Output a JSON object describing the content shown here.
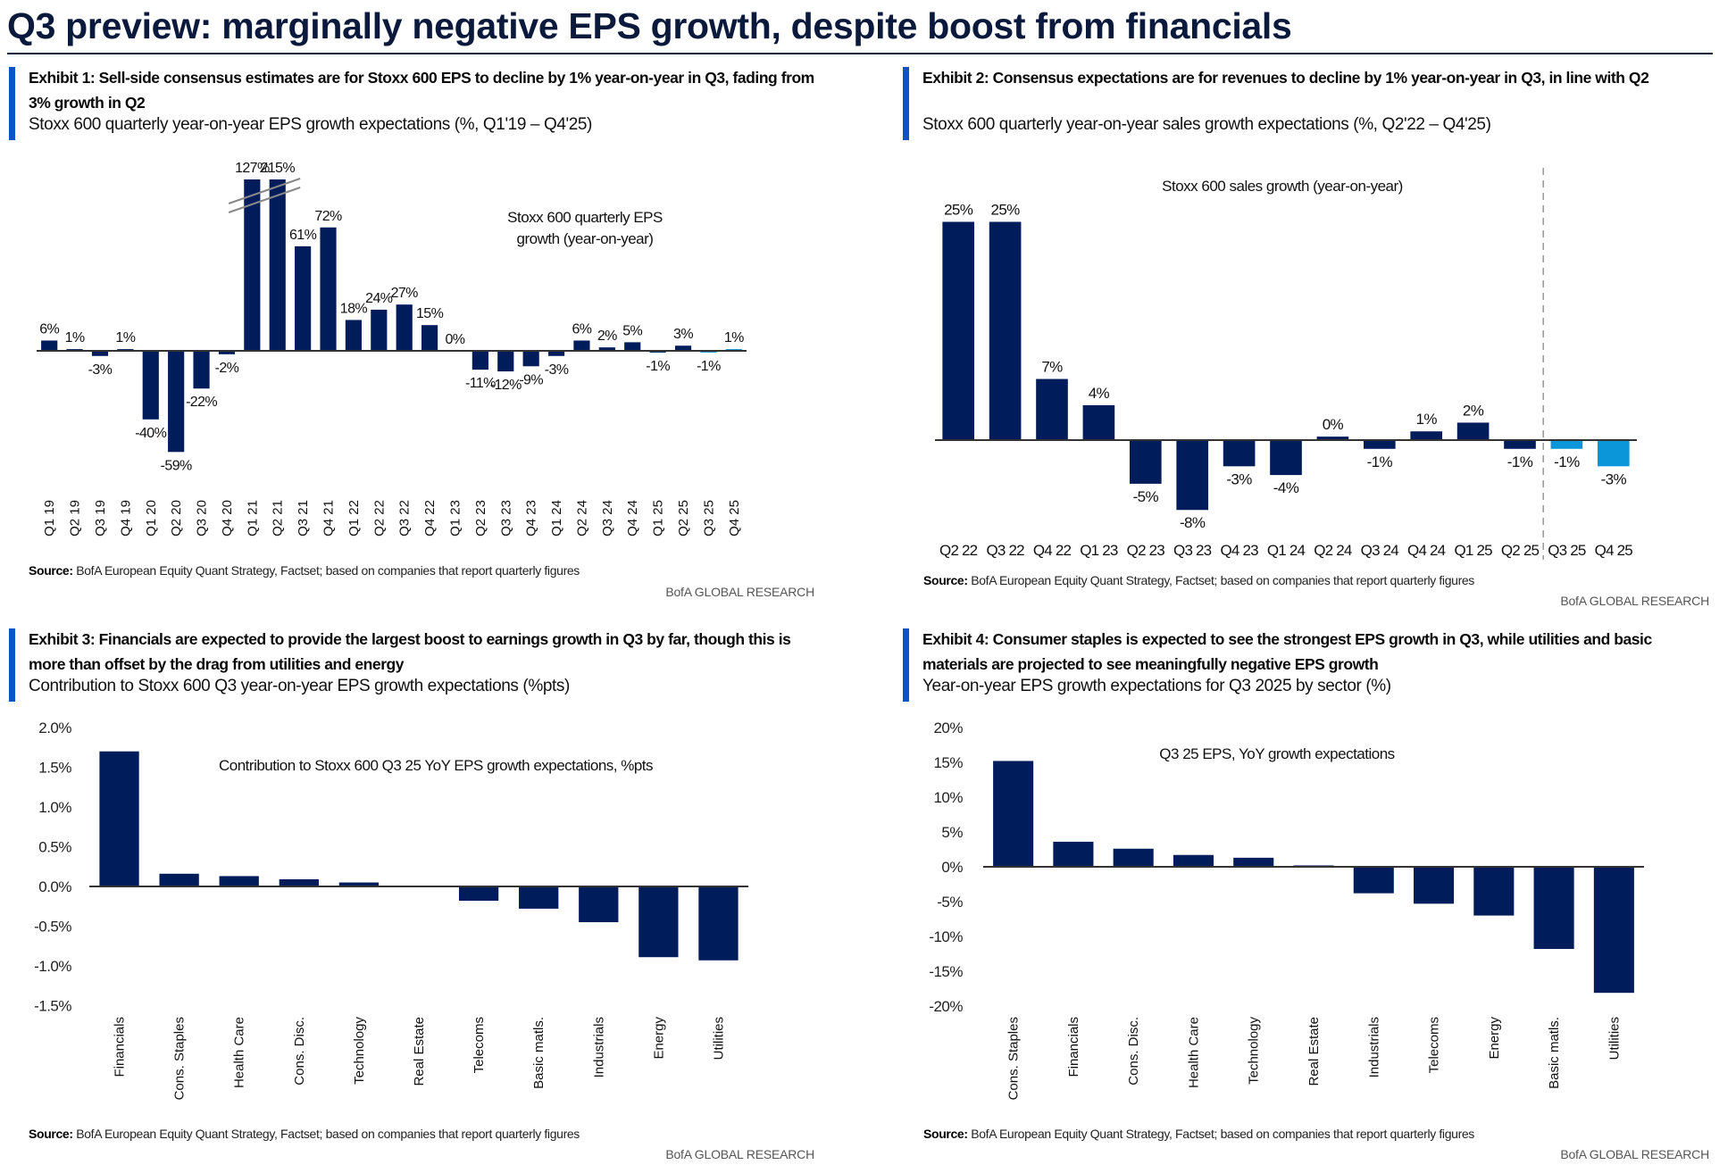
{
  "page_title": "Q3 preview: marginally negative EPS growth, despite boost from financials",
  "colors": {
    "bar": "#001c5a",
    "estimate_bar": "#0a96d8",
    "accent": "#0a54c6",
    "title": "#0b1a3c"
  },
  "exhibits": [
    {
      "heading": "Exhibit 1: Sell-side consensus estimates are for Stoxx 600 EPS to decline by 1% year-on-year in Q3, fading from 3% growth in Q2",
      "subtitle": "Stoxx 600 quarterly year-on-year EPS growth expectations (%, Q1'19 – Q4'25)",
      "source_label": "Source:",
      "source_text": " BofA European Equity Quant Strategy, Factset; based on companies that report quarterly figures",
      "brand": "BofA GLOBAL RESEARCH"
    },
    {
      "heading": "Exhibit 2: Consensus expectations are for revenues to decline by 1% year-on-year in Q3, in line with Q2",
      "subtitle": "Stoxx 600 quarterly year-on-year sales growth expectations (%, Q2'22 – Q4'25)",
      "source_label": "Source:",
      "source_text": " BofA European Equity Quant Strategy, Factset; based on companies that report quarterly figures",
      "brand": "BofA GLOBAL RESEARCH"
    },
    {
      "heading": "Exhibit 3: Financials are expected to provide the largest boost to earnings growth in Q3 by far, though this is more than offset by the drag from utilities and energy",
      "subtitle": "Contribution to Stoxx 600 Q3 year-on-year EPS growth expectations (%pts)",
      "source_label": "Source:",
      "source_text": " BofA European Equity Quant Strategy, Factset; based on companies that report quarterly figures",
      "brand": "BofA GLOBAL RESEARCH"
    },
    {
      "heading": "Exhibit 4: Consumer staples is expected to see the strongest EPS growth in Q3, while utilities and basic materials are projected to see meaningfully negative EPS growth",
      "subtitle": "Year-on-year EPS growth expectations for Q3 2025 by sector (%)",
      "source_label": "Source:",
      "source_text": " BofA European Equity Quant Strategy, Factset; based on companies that report quarterly figures",
      "brand": "BofA GLOBAL RESEARCH"
    }
  ],
  "chart_data": [
    {
      "type": "bar",
      "title": "Stoxx 600 quarterly EPS growth (year-on-year)",
      "categories": [
        "Q1 19",
        "Q2 19",
        "Q3 19",
        "Q4 19",
        "Q1 20",
        "Q2 20",
        "Q3 20",
        "Q4 20",
        "Q1 21",
        "Q2 21",
        "Q3 21",
        "Q4 21",
        "Q1 22",
        "Q2 22",
        "Q3 22",
        "Q4 22",
        "Q1 23",
        "Q2 23",
        "Q3 23",
        "Q4 23",
        "Q1 24",
        "Q2 24",
        "Q3 24",
        "Q4 24",
        "Q1 25",
        "Q2 25",
        "Q3 25",
        "Q4 25"
      ],
      "values": [
        6,
        1,
        -3,
        1,
        -40,
        -59,
        -22,
        -2,
        127,
        215,
        61,
        72,
        18,
        24,
        27,
        15,
        0,
        -11,
        -12,
        -9,
        -3,
        6,
        2,
        5,
        -1,
        3,
        -1,
        1
      ],
      "value_labels": [
        "6%",
        "1%",
        "-3%",
        "1%",
        "-40%",
        "-59%",
        "-22%",
        "-2%",
        "127%",
        "215%",
        "61%",
        "72%",
        "18%",
        "24%",
        "27%",
        "15%",
        "0%",
        "-11%",
        "-12%",
        "-9%",
        "-3%",
        "6%",
        "2%",
        "5%",
        "-1%",
        "3%",
        "-1%",
        "1%"
      ],
      "estimate_categories": [
        "Q3 25",
        "Q4 25"
      ],
      "axis_break": "bars above 100% truncated",
      "unit": "%",
      "grid": false
    },
    {
      "type": "bar",
      "title": "Stoxx 600 sales growth (year-on-year)",
      "categories": [
        "Q2 22",
        "Q3 22",
        "Q4 22",
        "Q1 23",
        "Q2 23",
        "Q3 23",
        "Q4 23",
        "Q1 24",
        "Q2 24",
        "Q3 24",
        "Q4 24",
        "Q1 25",
        "Q2 25",
        "Q3 25",
        "Q4 25"
      ],
      "values": [
        25,
        25,
        7,
        4,
        -5,
        -8,
        -3,
        -4,
        0.4,
        -1,
        1,
        2,
        -1,
        -1,
        -3
      ],
      "value_labels": [
        "25%",
        "25%",
        "7%",
        "4%",
        "-5%",
        "-8%",
        "-3%",
        "-4%",
        "0%",
        "-1%",
        "1%",
        "2%",
        "-1%",
        "-1%",
        "-3%"
      ],
      "estimate_categories": [
        "Q3 25",
        "Q4 25"
      ],
      "divider": "dashed line between Q2 25 and Q3 25",
      "unit": "%",
      "grid": false
    },
    {
      "type": "bar",
      "title": "Contribution to Stoxx 600 Q3 25 YoY EPS growth expectations, %pts",
      "categories": [
        "Financials",
        "Cons. Staples",
        "Health Care",
        "Cons. Disc.",
        "Technology",
        "Real Estate",
        "Telecoms",
        "Basic matls.",
        "Industrials",
        "Energy",
        "Utilities"
      ],
      "values": [
        1.7,
        0.16,
        0.13,
        0.09,
        0.05,
        0.0,
        -0.18,
        -0.28,
        -0.45,
        -0.89,
        -0.93
      ],
      "ylim": [
        -1.5,
        2.0
      ],
      "y_ticks": [
        2.0,
        1.5,
        1.0,
        0.5,
        0.0,
        -0.5,
        -1.0,
        -1.5
      ],
      "y_tick_labels": [
        "2.0%",
        "1.5%",
        "1.0%",
        "0.5%",
        "0.0%",
        "-0.5%",
        "-1.0%",
        "-1.5%"
      ],
      "grid": false
    },
    {
      "type": "bar",
      "title": "Q3 25 EPS, YoY growth expectations",
      "categories": [
        "Cons. Staples",
        "Financials",
        "Cons. Disc.",
        "Health Care",
        "Technology",
        "Real Estate",
        "Industrials",
        "Telecoms",
        "Energy",
        "Basic matls.",
        "Utilities"
      ],
      "values": [
        15.2,
        3.6,
        2.6,
        1.7,
        1.3,
        0.2,
        -3.8,
        -5.3,
        -7.0,
        -11.8,
        -18.1
      ],
      "ylim": [
        -20,
        20
      ],
      "y_ticks": [
        20,
        15,
        10,
        5,
        0,
        -5,
        -10,
        -15,
        -20
      ],
      "y_tick_labels": [
        "20%",
        "15%",
        "10%",
        "5%",
        "0%",
        "-5%",
        "-10%",
        "-15%",
        "-20%"
      ],
      "grid": false
    }
  ]
}
